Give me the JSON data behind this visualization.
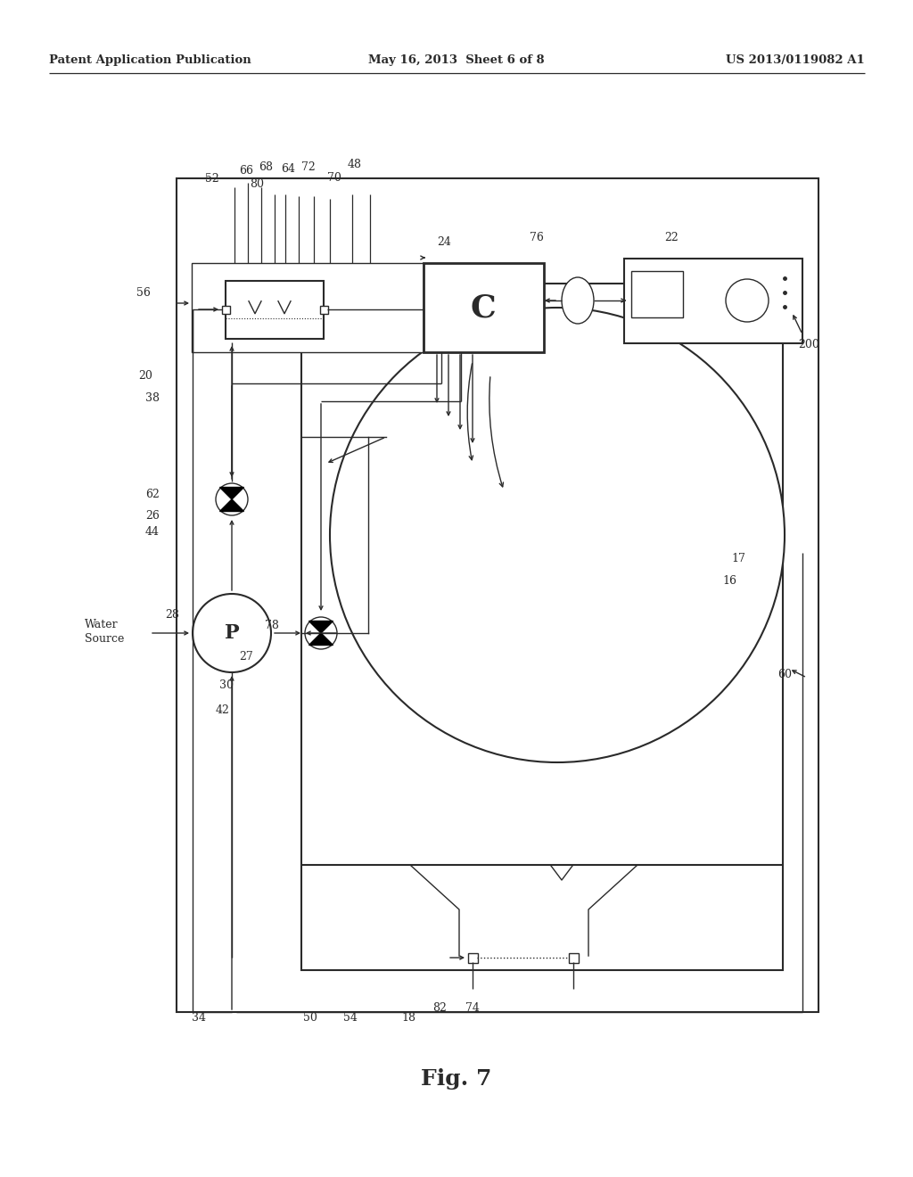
{
  "bg_color": "#ffffff",
  "lc": "#2a2a2a",
  "header_left": "Patent Application Publication",
  "header_mid": "May 16, 2013  Sheet 6 of 8",
  "header_right": "US 2013/0119082 A1",
  "fig_label": "Fig. 7",
  "lw_thin": 1.0,
  "lw_med": 1.5,
  "lw_thick": 2.0
}
